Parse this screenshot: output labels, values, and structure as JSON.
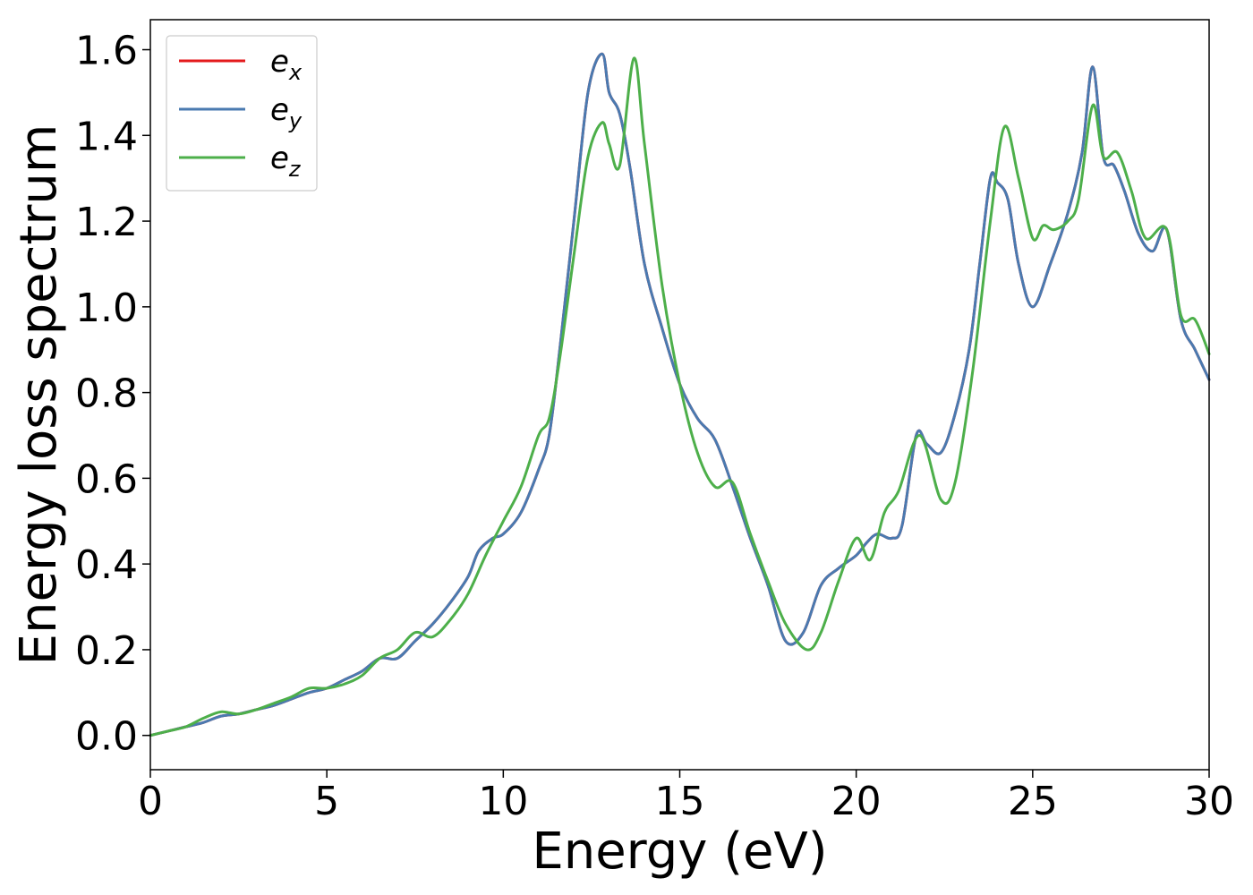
{
  "chart_data": {
    "type": "line",
    "title": "",
    "xlabel": "Energy (eV)",
    "ylabel": "Energy loss spectrum",
    "xlim": [
      0,
      30
    ],
    "ylim": [
      -0.08,
      1.67
    ],
    "xticks": [
      0,
      5,
      10,
      15,
      20,
      25,
      30
    ],
    "xtick_labels": [
      "0",
      "5",
      "10",
      "15",
      "20",
      "25",
      "30"
    ],
    "yticks": [
      0.0,
      0.2,
      0.4,
      0.6,
      0.8,
      1.0,
      1.2,
      1.4,
      1.6
    ],
    "ytick_labels": [
      "0.0",
      "0.2",
      "0.4",
      "0.6",
      "0.8",
      "1.0",
      "1.2",
      "1.4",
      "1.6"
    ],
    "grid": false,
    "legend_position": "top-left",
    "series": [
      {
        "name": "e_x",
        "label_base": "e",
        "label_sub": "x",
        "color": "#e41a1c",
        "x": [
          0,
          0.5,
          1,
          1.5,
          2,
          2.5,
          3,
          3.5,
          4,
          4.5,
          5,
          5.5,
          6,
          6.5,
          7,
          7.5,
          8,
          8.5,
          9,
          9.3,
          9.7,
          10,
          10.5,
          11,
          11.3,
          11.6,
          12,
          12.4,
          12.8,
          13,
          13.3,
          13.6,
          14,
          14.5,
          15,
          15.5,
          16,
          16.5,
          17,
          17.5,
          18,
          18.5,
          19,
          19.5,
          20,
          20.3,
          20.6,
          21,
          21.3,
          21.7,
          22,
          22.4,
          22.8,
          23.2,
          23.5,
          23.8,
          24,
          24.3,
          24.6,
          25,
          25.5,
          26,
          26.4,
          26.7,
          27,
          27.3,
          27.6,
          28,
          28.4,
          28.8,
          29.2,
          29.6,
          30
        ],
        "values": [
          0,
          0.01,
          0.02,
          0.03,
          0.045,
          0.05,
          0.06,
          0.07,
          0.085,
          0.1,
          0.11,
          0.13,
          0.15,
          0.18,
          0.18,
          0.22,
          0.26,
          0.31,
          0.37,
          0.43,
          0.46,
          0.47,
          0.52,
          0.62,
          0.7,
          0.9,
          1.2,
          1.5,
          1.59,
          1.5,
          1.45,
          1.32,
          1.1,
          0.95,
          0.82,
          0.74,
          0.69,
          0.58,
          0.46,
          0.35,
          0.22,
          0.24,
          0.35,
          0.39,
          0.42,
          0.45,
          0.47,
          0.46,
          0.49,
          0.7,
          0.68,
          0.66,
          0.75,
          0.9,
          1.1,
          1.3,
          1.29,
          1.25,
          1.1,
          1.0,
          1.1,
          1.22,
          1.36,
          1.56,
          1.35,
          1.33,
          1.27,
          1.17,
          1.13,
          1.18,
          0.97,
          0.9,
          0.83
        ]
      },
      {
        "name": "e_y",
        "label_base": "e",
        "label_sub": "y",
        "color": "#4a7ab0",
        "x": [
          0,
          0.5,
          1,
          1.5,
          2,
          2.5,
          3,
          3.5,
          4,
          4.5,
          5,
          5.5,
          6,
          6.5,
          7,
          7.5,
          8,
          8.5,
          9,
          9.3,
          9.7,
          10,
          10.5,
          11,
          11.3,
          11.6,
          12,
          12.4,
          12.8,
          13,
          13.3,
          13.6,
          14,
          14.5,
          15,
          15.5,
          16,
          16.5,
          17,
          17.5,
          18,
          18.5,
          19,
          19.5,
          20,
          20.3,
          20.6,
          21,
          21.3,
          21.7,
          22,
          22.4,
          22.8,
          23.2,
          23.5,
          23.8,
          24,
          24.3,
          24.6,
          25,
          25.5,
          26,
          26.4,
          26.7,
          27,
          27.3,
          27.6,
          28,
          28.4,
          28.8,
          29.2,
          29.6,
          30
        ],
        "values": [
          0,
          0.01,
          0.02,
          0.03,
          0.045,
          0.05,
          0.06,
          0.07,
          0.085,
          0.1,
          0.11,
          0.13,
          0.15,
          0.18,
          0.18,
          0.22,
          0.26,
          0.31,
          0.37,
          0.43,
          0.46,
          0.47,
          0.52,
          0.62,
          0.7,
          0.9,
          1.2,
          1.5,
          1.59,
          1.5,
          1.45,
          1.32,
          1.1,
          0.95,
          0.82,
          0.74,
          0.69,
          0.58,
          0.46,
          0.35,
          0.22,
          0.24,
          0.35,
          0.39,
          0.42,
          0.45,
          0.47,
          0.46,
          0.49,
          0.7,
          0.68,
          0.66,
          0.75,
          0.9,
          1.1,
          1.3,
          1.29,
          1.25,
          1.1,
          1.0,
          1.1,
          1.22,
          1.36,
          1.56,
          1.35,
          1.33,
          1.27,
          1.17,
          1.13,
          1.18,
          0.97,
          0.9,
          0.83
        ]
      },
      {
        "name": "e_z",
        "label_base": "e",
        "label_sub": "z",
        "color": "#4daf4a",
        "x": [
          0,
          0.5,
          1,
          1.5,
          2,
          2.5,
          3,
          3.5,
          4,
          4.5,
          5,
          5.5,
          6,
          6.5,
          7,
          7.5,
          8,
          8.5,
          9,
          9.5,
          10,
          10.5,
          11,
          11.3,
          11.6,
          12,
          12.4,
          12.8,
          13,
          13.3,
          13.7,
          14,
          14.5,
          15,
          15.5,
          16,
          16.5,
          17,
          17.5,
          18,
          18.6,
          19,
          19.5,
          20,
          20.4,
          20.8,
          21.2,
          21.8,
          22.4,
          22.8,
          23.3,
          23.8,
          24.2,
          24.6,
          25,
          25.3,
          25.6,
          26,
          26.3,
          26.7,
          27,
          27.4,
          27.8,
          28.2,
          28.8,
          29.2,
          29.6,
          30
        ],
        "values": [
          0,
          0.01,
          0.02,
          0.04,
          0.055,
          0.05,
          0.06,
          0.075,
          0.09,
          0.11,
          0.11,
          0.12,
          0.14,
          0.18,
          0.2,
          0.24,
          0.23,
          0.27,
          0.33,
          0.42,
          0.5,
          0.58,
          0.7,
          0.74,
          0.88,
          1.12,
          1.35,
          1.43,
          1.38,
          1.33,
          1.58,
          1.38,
          1.05,
          0.82,
          0.66,
          0.58,
          0.59,
          0.47,
          0.36,
          0.26,
          0.2,
          0.24,
          0.36,
          0.46,
          0.41,
          0.52,
          0.57,
          0.7,
          0.55,
          0.59,
          0.85,
          1.2,
          1.42,
          1.3,
          1.16,
          1.19,
          1.18,
          1.2,
          1.25,
          1.47,
          1.35,
          1.36,
          1.27,
          1.16,
          1.18,
          0.98,
          0.97,
          0.89
        ]
      }
    ]
  }
}
